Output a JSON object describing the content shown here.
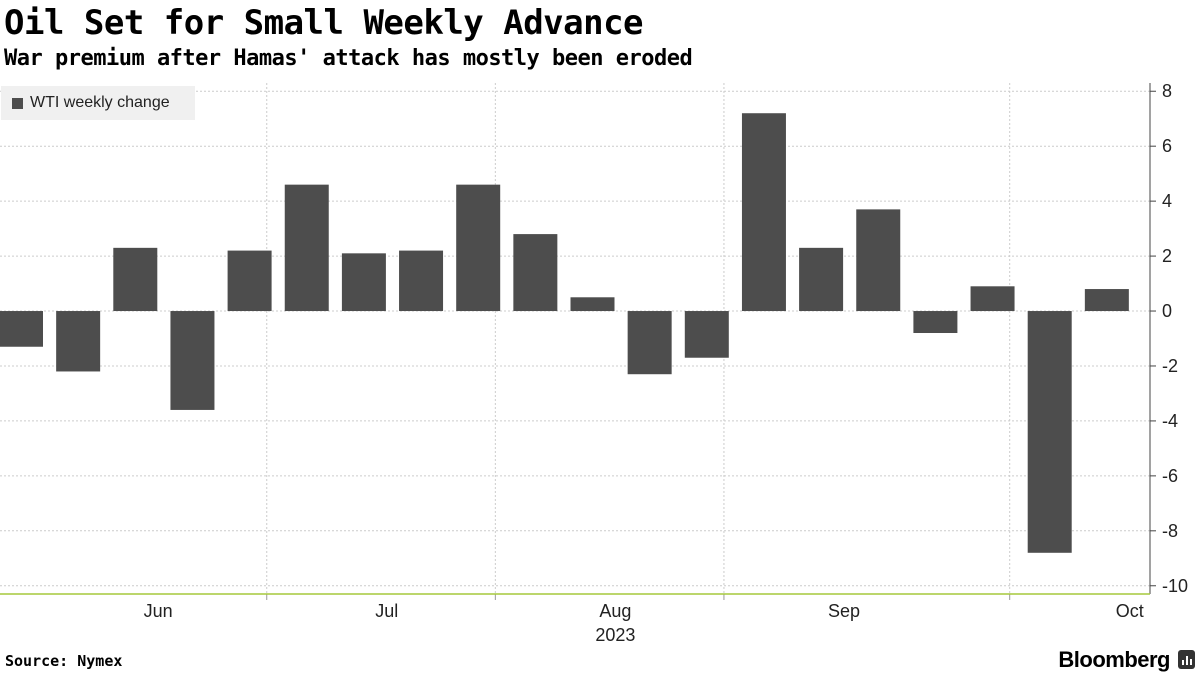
{
  "header": {
    "title": "Oil Set for Small Weekly Advance",
    "subtitle": "War premium after Hamas' attack has mostly been eroded"
  },
  "footer": {
    "source": "Source: Nymex",
    "brand": "Bloomberg"
  },
  "colors": {
    "bar": "#4d4d4d",
    "grid": "#cccccc",
    "axis_baseline": "#a6c93b",
    "legend_bg": "#f0f0f0"
  },
  "chart_data": {
    "type": "bar",
    "title": "Oil Set for Small Weekly Advance",
    "subtitle": "War premium after Hamas' attack has mostly been eroded",
    "series": [
      {
        "name": "WTI weekly change",
        "values": [
          -1.3,
          -2.2,
          2.3,
          -3.6,
          2.2,
          4.6,
          2.1,
          2.2,
          4.6,
          2.8,
          0.5,
          -2.3,
          -1.7,
          7.2,
          2.3,
          3.7,
          -0.8,
          0.9,
          -8.8,
          0.8
        ]
      }
    ],
    "xlabel": "",
    "ylabel": "",
    "ylim": [
      -10.3,
      8.3
    ],
    "y_ticks": [
      8,
      6,
      4,
      2,
      0,
      -2,
      -4,
      -6,
      -8,
      -10
    ],
    "x_tick_labels": [
      "Jun",
      "Jul",
      "Aug",
      "Sep",
      "Oct"
    ],
    "x_tick_label_bar_positions": [
      2.4,
      6.4,
      10.4,
      14.4,
      19.4
    ],
    "month_boundaries_at_bar": [
      4.3,
      8.3,
      12.3,
      17.3
    ],
    "year_label": "2023",
    "legend": "top-left",
    "y_axis_side": "right",
    "grid": true
  }
}
